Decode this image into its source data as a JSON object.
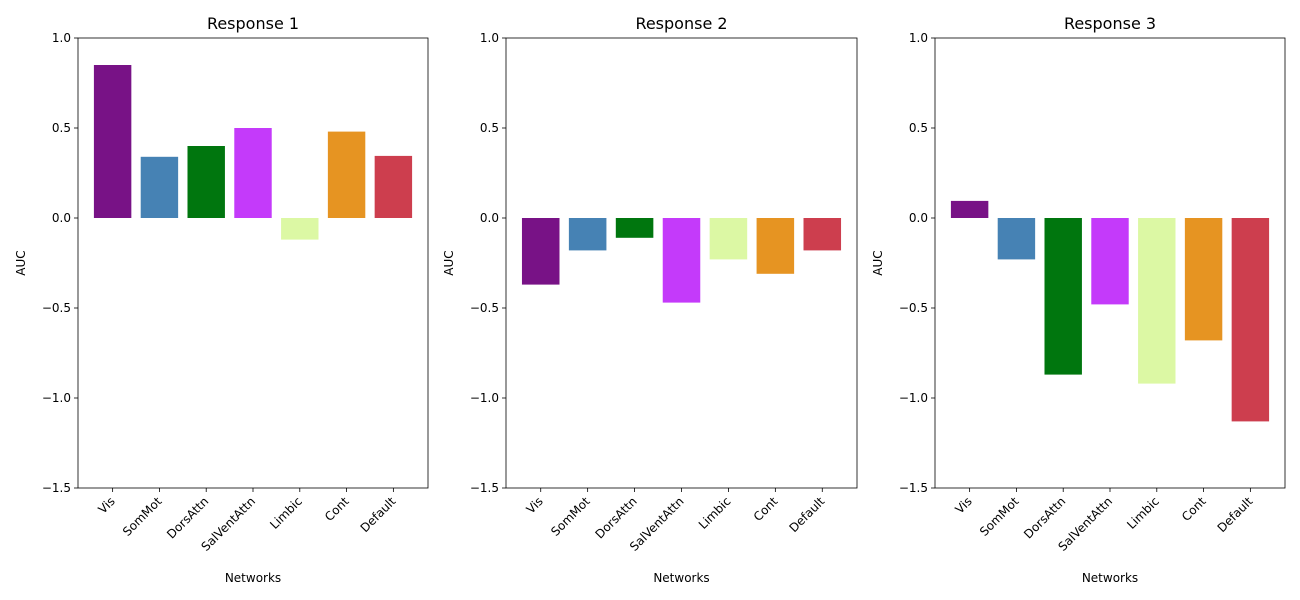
{
  "chart_data": [
    {
      "type": "bar",
      "title": "Response 1",
      "xlabel": "Networks",
      "ylabel": "AUC",
      "ylim": [
        -1.5,
        1.0
      ],
      "yticks": [
        -1.5,
        -1.0,
        -0.5,
        0.0,
        0.5,
        1.0
      ],
      "grid": false,
      "categories": [
        "Vis",
        "SomMot",
        "DorsAttn",
        "SalVentAttn",
        "Limbic",
        "Cont",
        "Default"
      ],
      "values": [
        0.85,
        0.34,
        0.4,
        0.5,
        -0.12,
        0.48,
        0.345
      ]
    },
    {
      "type": "bar",
      "title": "Response 2",
      "xlabel": "Networks",
      "ylabel": "AUC",
      "ylim": [
        -1.5,
        1.0
      ],
      "yticks": [
        -1.5,
        -1.0,
        -0.5,
        0.0,
        0.5,
        1.0
      ],
      "grid": false,
      "categories": [
        "Vis",
        "SomMot",
        "DorsAttn",
        "SalVentAttn",
        "Limbic",
        "Cont",
        "Default"
      ],
      "values": [
        -0.37,
        -0.18,
        -0.11,
        -0.47,
        -0.23,
        -0.31,
        -0.18
      ]
    },
    {
      "type": "bar",
      "title": "Response 3",
      "xlabel": "Networks",
      "ylabel": "AUC",
      "ylim": [
        -1.5,
        1.0
      ],
      "yticks": [
        -1.5,
        -1.0,
        -0.5,
        0.0,
        0.5,
        1.0
      ],
      "grid": false,
      "categories": [
        "Vis",
        "SomMot",
        "DorsAttn",
        "SalVentAttn",
        "Limbic",
        "Cont",
        "Default"
      ],
      "values": [
        0.095,
        -0.23,
        -0.87,
        -0.48,
        -0.92,
        -0.68,
        -1.13
      ]
    }
  ],
  "colors": {
    "Vis": "#781286",
    "SomMot": "#4682B4",
    "DorsAttn": "#00760E",
    "SalVentAttn": "#C43AFA",
    "Limbic": "#DCF8A4",
    "Cont": "#E69422",
    "Default": "#CD3E4E"
  }
}
